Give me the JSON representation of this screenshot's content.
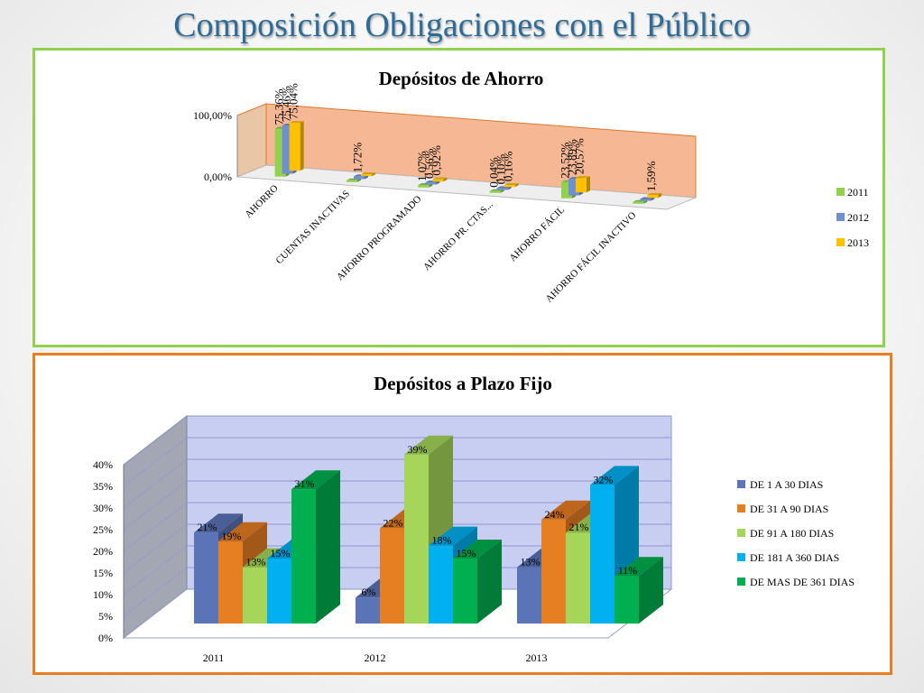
{
  "slide": {
    "title": "Composición Obligaciones con el Público"
  },
  "colors": {
    "panel_top_border": "#92d050",
    "panel_bottom_border": "#e67e22",
    "title": "#2e6b96"
  },
  "chart_data": [
    {
      "type": "bar",
      "title": "Depósitos de Ahorro",
      "categories": [
        "AHORRO",
        "CUENTAS INACTIVAS",
        "AHORRO PROGRAMADO",
        "AHORRO PR. CTAS...",
        "AHORRO FÁCIL",
        "AHORRO FÁCIL INACTIVO"
      ],
      "series": [
        {
          "name": "2011",
          "color": "#92d050",
          "values": [
            75.36,
            0.0,
            1.07,
            0.04,
            23.52,
            0.0
          ],
          "labels": [
            "75,36%",
            "",
            "1,07%",
            "0,04%",
            "23,52%",
            ""
          ]
        },
        {
          "name": "2012",
          "color": "#6f8fd0",
          "values": [
            75.46,
            1.72,
            0.56,
            0.1,
            23.89,
            0.0
          ],
          "labels": [
            "75,46%",
            "1,72%",
            "0,56%",
            "0,10%",
            "23,89%",
            ""
          ]
        },
        {
          "name": "2013",
          "color": "#ffc000",
          "values": [
            75.04,
            0.0,
            0.92,
            0.16,
            20.57,
            1.59
          ],
          "labels": [
            "75,04%",
            "",
            "0,92%",
            "0,16%",
            "20,57%",
            "1,59%"
          ]
        }
      ],
      "yticks": [
        "0,00%",
        "100,00%"
      ],
      "ylim": [
        0,
        100
      ],
      "legend": "right",
      "three_d": true
    },
    {
      "type": "bar",
      "title": "Depósitos a Plazo Fijo",
      "categories": [
        "2011",
        "2012",
        "2013"
      ],
      "series": [
        {
          "name": "DE 1 A 30 DIAS",
          "color": "#5b74b8",
          "values": [
            21,
            6,
            13
          ]
        },
        {
          "name": "DE 31 A 90 DIAS",
          "color": "#e67e22",
          "values": [
            19,
            22,
            24
          ]
        },
        {
          "name": "DE 91 A 180 DIAS",
          "color": "#a5d65a",
          "values": [
            13,
            39,
            21
          ]
        },
        {
          "name": "DE 181 A 360 DIAS",
          "color": "#00b0f0",
          "values": [
            15,
            18,
            32
          ]
        },
        {
          "name": "DE MAS DE 361 DIAS",
          "color": "#00b050",
          "values": [
            31,
            15,
            11
          ]
        }
      ],
      "yticks": [
        "0%",
        "5%",
        "10%",
        "15%",
        "20%",
        "25%",
        "30%",
        "35%",
        "40%"
      ],
      "ylim": [
        0,
        40
      ],
      "legend": "right",
      "three_d": true
    }
  ]
}
